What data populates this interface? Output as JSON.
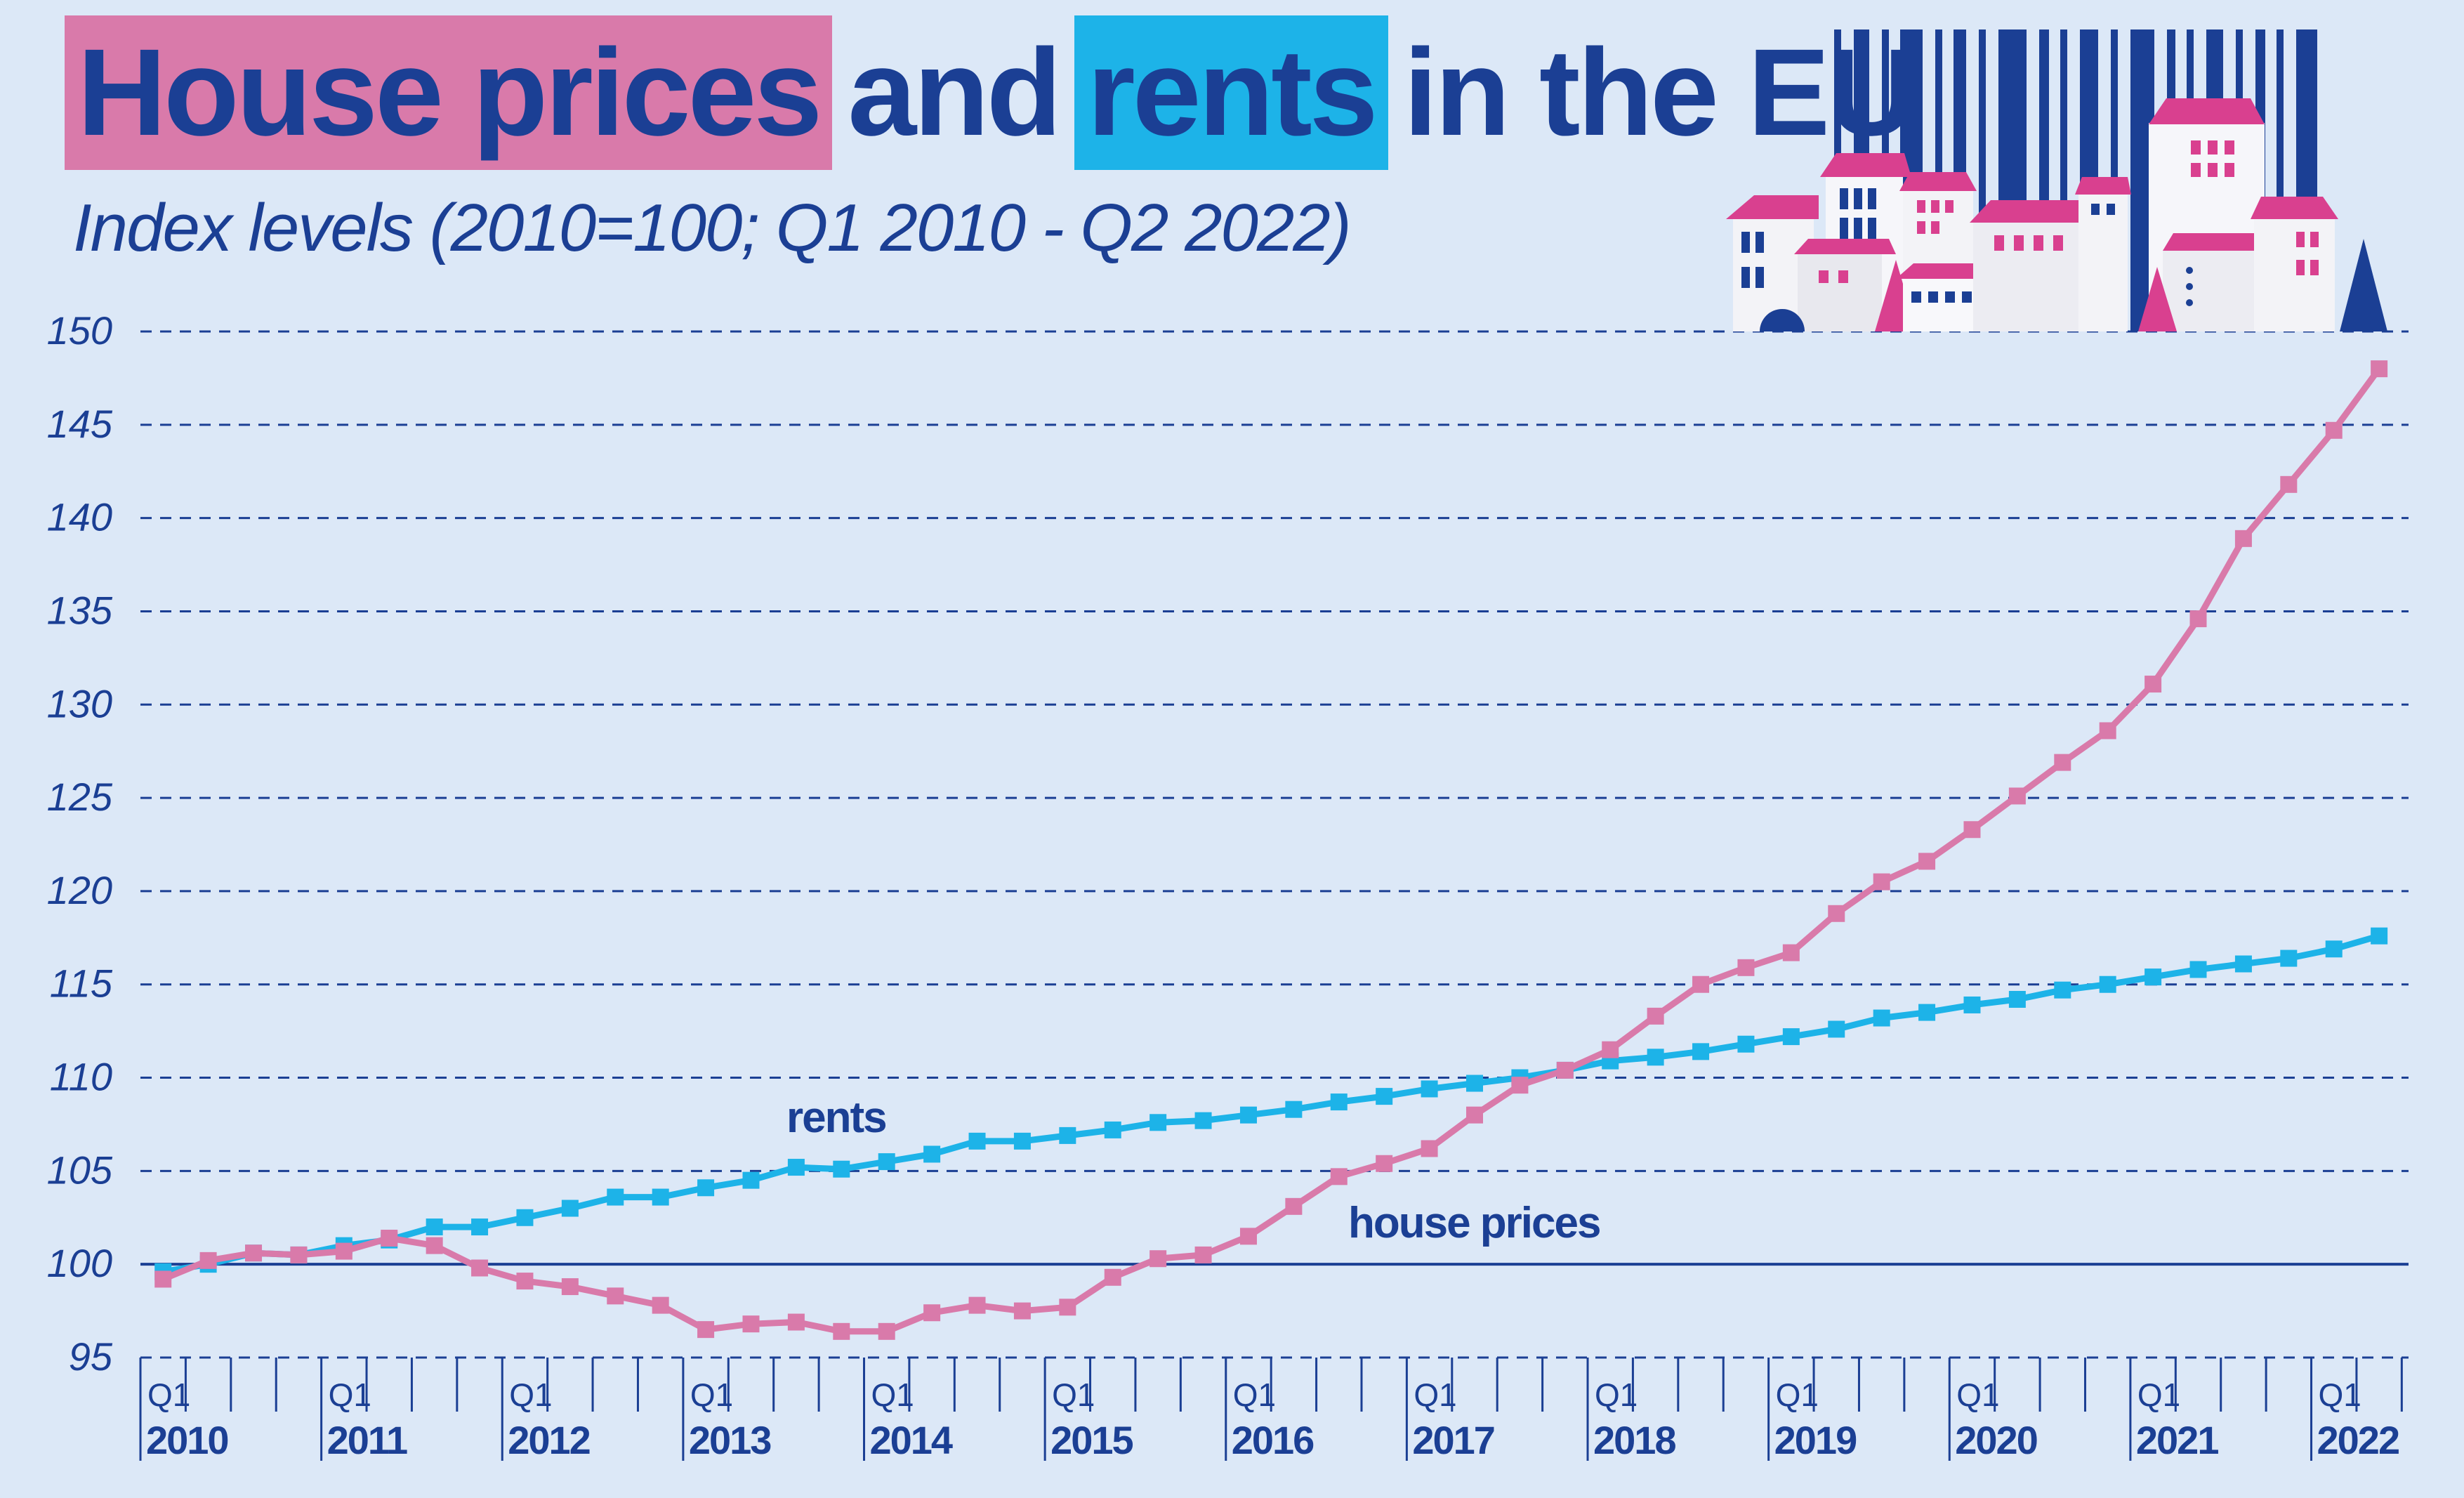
{
  "header": {
    "title_part1": "House prices",
    "title_part2": "and",
    "title_part3": "rents",
    "title_part4": "in the EU",
    "subtitle": "Index levels (2010=100; Q1 2010  - Q2 2022)"
  },
  "colors": {
    "background": "#dce8f7",
    "title": "#1b3f94",
    "house_prices": "#d97aaa",
    "rents": "#1db3e8",
    "gridline": "#1b3f94"
  },
  "illustration": {
    "icon": "city-houses-icon"
  },
  "chart_data": {
    "type": "line",
    "title": "House prices and rents in the EU",
    "subtitle": "Index levels (2010=100; Q1 2010  - Q2 2022)",
    "xlabel": "",
    "ylabel": "",
    "ylim": [
      95,
      150
    ],
    "yticks": [
      95,
      100,
      105,
      110,
      115,
      120,
      125,
      130,
      135,
      140,
      145,
      150
    ],
    "grid": true,
    "quarter_tick_label": "Q1",
    "years": [
      "2010",
      "2011",
      "2012",
      "2013",
      "2014",
      "2015",
      "2016",
      "2017",
      "2018",
      "2019",
      "2020",
      "2021",
      "2022"
    ],
    "x": [
      "2010Q1",
      "2010Q2",
      "2010Q3",
      "2010Q4",
      "2011Q1",
      "2011Q2",
      "2011Q3",
      "2011Q4",
      "2012Q1",
      "2012Q2",
      "2012Q3",
      "2012Q4",
      "2013Q1",
      "2013Q2",
      "2013Q3",
      "2013Q4",
      "2014Q1",
      "2014Q2",
      "2014Q3",
      "2014Q4",
      "2015Q1",
      "2015Q2",
      "2015Q3",
      "2015Q4",
      "2016Q1",
      "2016Q2",
      "2016Q3",
      "2016Q4",
      "2017Q1",
      "2017Q2",
      "2017Q3",
      "2017Q4",
      "2018Q1",
      "2018Q2",
      "2018Q3",
      "2018Q4",
      "2019Q1",
      "2019Q2",
      "2019Q3",
      "2019Q4",
      "2020Q1",
      "2020Q2",
      "2020Q3",
      "2020Q4",
      "2021Q1",
      "2021Q2",
      "2021Q3",
      "2021Q4",
      "2022Q1",
      "2022Q2"
    ],
    "series": [
      {
        "name": "rents",
        "values": [
          99.6,
          100.0,
          100.6,
          100.5,
          101.0,
          101.3,
          102.0,
          102.0,
          102.5,
          103.0,
          103.6,
          103.6,
          104.1,
          104.5,
          105.2,
          105.1,
          105.5,
          105.9,
          106.6,
          106.6,
          106.9,
          107.2,
          107.6,
          107.7,
          108.0,
          108.3,
          108.7,
          109.0,
          109.4,
          109.7,
          110.0,
          110.4,
          110.9,
          111.1,
          111.4,
          111.8,
          112.2,
          112.6,
          113.2,
          113.5,
          113.9,
          114.2,
          114.7,
          115.0,
          115.4,
          115.8,
          116.1,
          116.4,
          116.9,
          117.6
        ]
      },
      {
        "name": "house prices",
        "values": [
          99.2,
          100.2,
          100.6,
          100.5,
          100.7,
          101.4,
          101.0,
          99.8,
          99.1,
          98.8,
          98.3,
          97.8,
          96.5,
          96.8,
          96.9,
          96.4,
          96.4,
          97.4,
          97.8,
          97.5,
          97.7,
          99.3,
          100.3,
          100.5,
          101.5,
          103.1,
          104.7,
          105.4,
          106.2,
          108.0,
          109.6,
          110.4,
          111.5,
          113.3,
          115.0,
          115.9,
          116.7,
          118.8,
          120.5,
          121.6,
          123.3,
          125.1,
          126.9,
          128.6,
          131.1,
          134.6,
          138.9,
          141.8,
          144.7,
          148.0
        ]
      }
    ],
    "annotations": [
      {
        "text": "rents",
        "series": "rents"
      },
      {
        "text": "house prices",
        "series": "house prices"
      }
    ]
  }
}
